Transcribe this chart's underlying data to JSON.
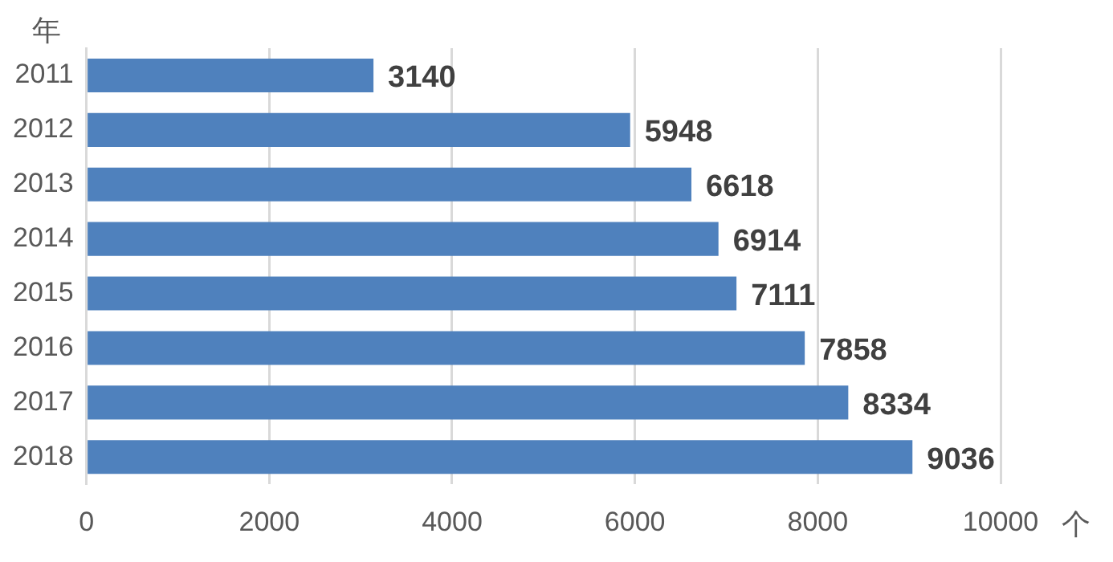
{
  "chart_data": {
    "type": "bar",
    "orientation": "horizontal",
    "ylabel": "年",
    "xlabel": "个",
    "categories": [
      "2011",
      "2012",
      "2013",
      "2014",
      "2015",
      "2016",
      "2017",
      "2018"
    ],
    "values": [
      3140,
      5948,
      6618,
      6914,
      7111,
      7858,
      8334,
      9036
    ],
    "color": "#4f81bd",
    "xlim": [
      0,
      10000
    ],
    "xticks": [
      0,
      2000,
      4000,
      6000,
      8000,
      10000
    ],
    "grid": "x",
    "data_labels": true,
    "legend": false
  }
}
